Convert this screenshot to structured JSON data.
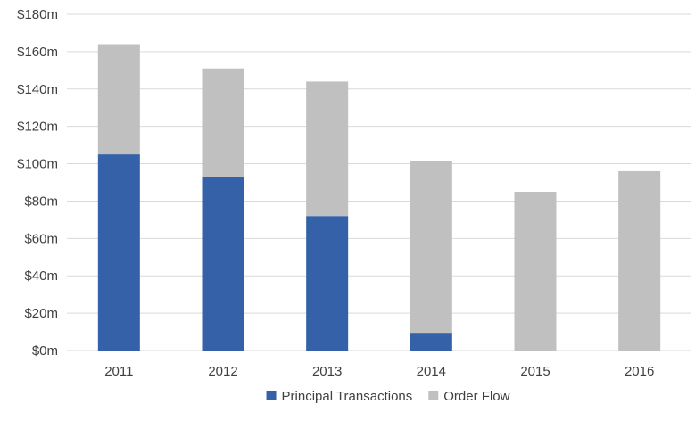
{
  "chart_data": {
    "type": "bar",
    "stacked": true,
    "title": "",
    "xlabel": "",
    "ylabel": "",
    "categories": [
      "2011",
      "2012",
      "2013",
      "2014",
      "2015",
      "2016"
    ],
    "series": [
      {
        "name": "Principal Transactions",
        "color": "#3461a8",
        "values": [
          105,
          93,
          72,
          9.5,
          0,
          0
        ]
      },
      {
        "name": "Order Flow",
        "color": "#c0c0c0",
        "values": [
          59,
          58,
          72,
          92,
          85,
          96
        ]
      }
    ],
    "ylim": [
      0,
      180
    ],
    "yticks": [
      0,
      20,
      40,
      60,
      80,
      100,
      120,
      140,
      160,
      180
    ],
    "ytick_labels": [
      "$0m",
      "$20m",
      "$40m",
      "$60m",
      "$80m",
      "$100m",
      "$120m",
      "$140m",
      "$160m",
      "$180m"
    ],
    "grid": true,
    "legend_position": "bottom"
  }
}
